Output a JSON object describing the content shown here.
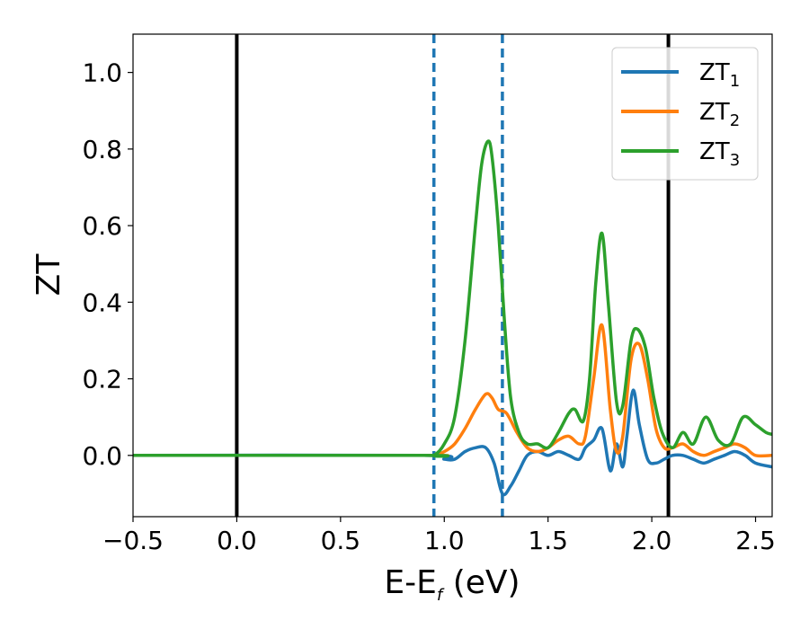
{
  "chart_data": {
    "type": "line",
    "xlabel": {
      "main": "E-E",
      "sub": "f",
      "rest": " (eV)"
    },
    "ylabel": "ZT",
    "xlim": [
      -0.5,
      2.58
    ],
    "ylim": [
      -0.16,
      1.1
    ],
    "xticks": [
      -0.5,
      0.0,
      0.5,
      1.0,
      1.5,
      2.0,
      2.5
    ],
    "xtick_labels": [
      "−0.5",
      "0.0",
      "0.5",
      "1.0",
      "1.5",
      "2.0",
      "2.5"
    ],
    "yticks": [
      0.0,
      0.2,
      0.4,
      0.6,
      0.8,
      1.0
    ],
    "ytick_labels": [
      "0.0",
      "0.2",
      "0.4",
      "0.6",
      "0.8",
      "1.0"
    ],
    "grid": false,
    "legend_position": "top-right",
    "vlines": [
      {
        "x": 0.0,
        "style": "solid",
        "color": "#000000"
      },
      {
        "x": 2.08,
        "style": "solid",
        "color": "#000000"
      },
      {
        "x": 0.95,
        "style": "dashed",
        "color": "#1f77b4"
      },
      {
        "x": 1.28,
        "style": "dashed",
        "color": "#1f77b4"
      }
    ],
    "series": [
      {
        "name": "ZT",
        "name_sub": "1",
        "color": "#1f77b4",
        "x": [
          -0.5,
          0.9,
          1.0,
          1.05,
          1.1,
          1.15,
          1.2,
          1.24,
          1.28,
          1.32,
          1.36,
          1.4,
          1.45,
          1.5,
          1.55,
          1.6,
          1.65,
          1.68,
          1.72,
          1.76,
          1.8,
          1.83,
          1.86,
          1.88,
          1.91,
          1.94,
          1.98,
          2.02,
          2.06,
          2.1,
          2.15,
          2.2,
          2.25,
          2.3,
          2.35,
          2.4,
          2.45,
          2.5,
          2.58
        ],
        "y": [
          0.0,
          0.0,
          -0.01,
          -0.01,
          0.01,
          0.02,
          0.02,
          -0.02,
          -0.1,
          -0.08,
          -0.04,
          0.0,
          0.01,
          0.0,
          0.01,
          0.0,
          -0.01,
          0.02,
          0.04,
          0.07,
          -0.04,
          0.03,
          -0.03,
          0.05,
          0.17,
          0.08,
          -0.01,
          -0.02,
          -0.01,
          0.0,
          0.0,
          -0.01,
          -0.02,
          -0.01,
          0.0,
          0.01,
          0.0,
          -0.02,
          -0.03
        ]
      },
      {
        "name": "ZT",
        "name_sub": "2",
        "color": "#ff7f0e",
        "x": [
          -0.5,
          0.9,
          0.95,
          1.0,
          1.05,
          1.1,
          1.15,
          1.2,
          1.23,
          1.26,
          1.3,
          1.35,
          1.4,
          1.45,
          1.5,
          1.55,
          1.6,
          1.65,
          1.68,
          1.72,
          1.76,
          1.8,
          1.83,
          1.86,
          1.9,
          1.94,
          1.98,
          2.02,
          2.06,
          2.1,
          2.15,
          2.2,
          2.25,
          2.3,
          2.35,
          2.4,
          2.45,
          2.5,
          2.58
        ],
        "y": [
          0.0,
          0.0,
          0.0,
          0.01,
          0.03,
          0.07,
          0.12,
          0.16,
          0.15,
          0.12,
          0.11,
          0.06,
          0.02,
          0.01,
          0.02,
          0.04,
          0.05,
          0.03,
          0.05,
          0.2,
          0.34,
          0.12,
          0.01,
          0.05,
          0.25,
          0.29,
          0.2,
          0.07,
          0.02,
          0.02,
          0.03,
          0.01,
          0.0,
          0.01,
          0.02,
          0.03,
          0.02,
          0.0,
          0.0
        ]
      },
      {
        "name": "ZT",
        "name_sub": "3",
        "color": "#2ca02c",
        "x": [
          -0.5,
          0.9,
          0.95,
          1.0,
          1.05,
          1.1,
          1.15,
          1.18,
          1.21,
          1.23,
          1.26,
          1.29,
          1.32,
          1.36,
          1.4,
          1.45,
          1.5,
          1.55,
          1.6,
          1.63,
          1.67,
          1.7,
          1.73,
          1.76,
          1.79,
          1.83,
          1.86,
          1.9,
          1.93,
          1.97,
          2.01,
          2.05,
          2.1,
          2.15,
          2.2,
          2.26,
          2.32,
          2.38,
          2.44,
          2.5,
          2.55,
          2.58
        ],
        "y": [
          0.0,
          0.0,
          0.0,
          0.03,
          0.1,
          0.3,
          0.6,
          0.76,
          0.82,
          0.78,
          0.6,
          0.35,
          0.15,
          0.06,
          0.03,
          0.03,
          0.02,
          0.06,
          0.11,
          0.12,
          0.09,
          0.2,
          0.45,
          0.58,
          0.4,
          0.14,
          0.13,
          0.3,
          0.33,
          0.28,
          0.15,
          0.06,
          0.02,
          0.06,
          0.03,
          0.1,
          0.04,
          0.03,
          0.1,
          0.08,
          0.06,
          0.055
        ]
      }
    ]
  }
}
